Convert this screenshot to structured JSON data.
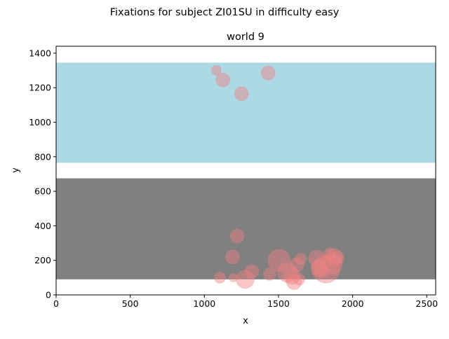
{
  "chart_data": {
    "type": "scatter",
    "suptitle": "Fixations for subject ZI01SU in difficulty easy",
    "title": "world 9",
    "xlabel": "x",
    "ylabel": "y",
    "xlim": [
      0,
      2560
    ],
    "ylim": [
      0,
      1440
    ],
    "xticks": [
      0,
      500,
      1000,
      1500,
      2000,
      2500
    ],
    "yticks": [
      0,
      200,
      400,
      600,
      800,
      1000,
      1200,
      1400
    ],
    "grid": false,
    "regions": [
      {
        "name": "sky",
        "color": "#add8e6",
        "x": [
          0,
          2560
        ],
        "y": [
          765,
          1345
        ]
      },
      {
        "name": "ground",
        "color": "#808080",
        "x": [
          0,
          2560
        ],
        "y": [
          90,
          675
        ]
      }
    ],
    "marker_color": "#f08080",
    "marker_alpha": 0.45,
    "points": [
      {
        "x": 1080,
        "y": 1300,
        "size": 7
      },
      {
        "x": 1125,
        "y": 1245,
        "size": 10
      },
      {
        "x": 1250,
        "y": 1165,
        "size": 10
      },
      {
        "x": 1430,
        "y": 1285,
        "size": 10
      },
      {
        "x": 1220,
        "y": 340,
        "size": 10
      },
      {
        "x": 1190,
        "y": 220,
        "size": 10
      },
      {
        "x": 1105,
        "y": 100,
        "size": 8
      },
      {
        "x": 1195,
        "y": 100,
        "size": 6
      },
      {
        "x": 1275,
        "y": 90,
        "size": 13
      },
      {
        "x": 1320,
        "y": 135,
        "size": 10
      },
      {
        "x": 1440,
        "y": 120,
        "size": 9
      },
      {
        "x": 1505,
        "y": 200,
        "size": 16
      },
      {
        "x": 1560,
        "y": 130,
        "size": 14
      },
      {
        "x": 1590,
        "y": 110,
        "size": 12
      },
      {
        "x": 1605,
        "y": 75,
        "size": 11
      },
      {
        "x": 1625,
        "y": 175,
        "size": 10
      },
      {
        "x": 1650,
        "y": 210,
        "size": 8
      },
      {
        "x": 1640,
        "y": 90,
        "size": 8
      },
      {
        "x": 1760,
        "y": 210,
        "size": 12
      },
      {
        "x": 1775,
        "y": 155,
        "size": 12
      },
      {
        "x": 1790,
        "y": 140,
        "size": 10
      },
      {
        "x": 1820,
        "y": 150,
        "size": 20
      },
      {
        "x": 1860,
        "y": 180,
        "size": 15
      },
      {
        "x": 1875,
        "y": 220,
        "size": 12
      },
      {
        "x": 1900,
        "y": 215,
        "size": 9
      },
      {
        "x": 1845,
        "y": 240,
        "size": 8
      }
    ]
  }
}
